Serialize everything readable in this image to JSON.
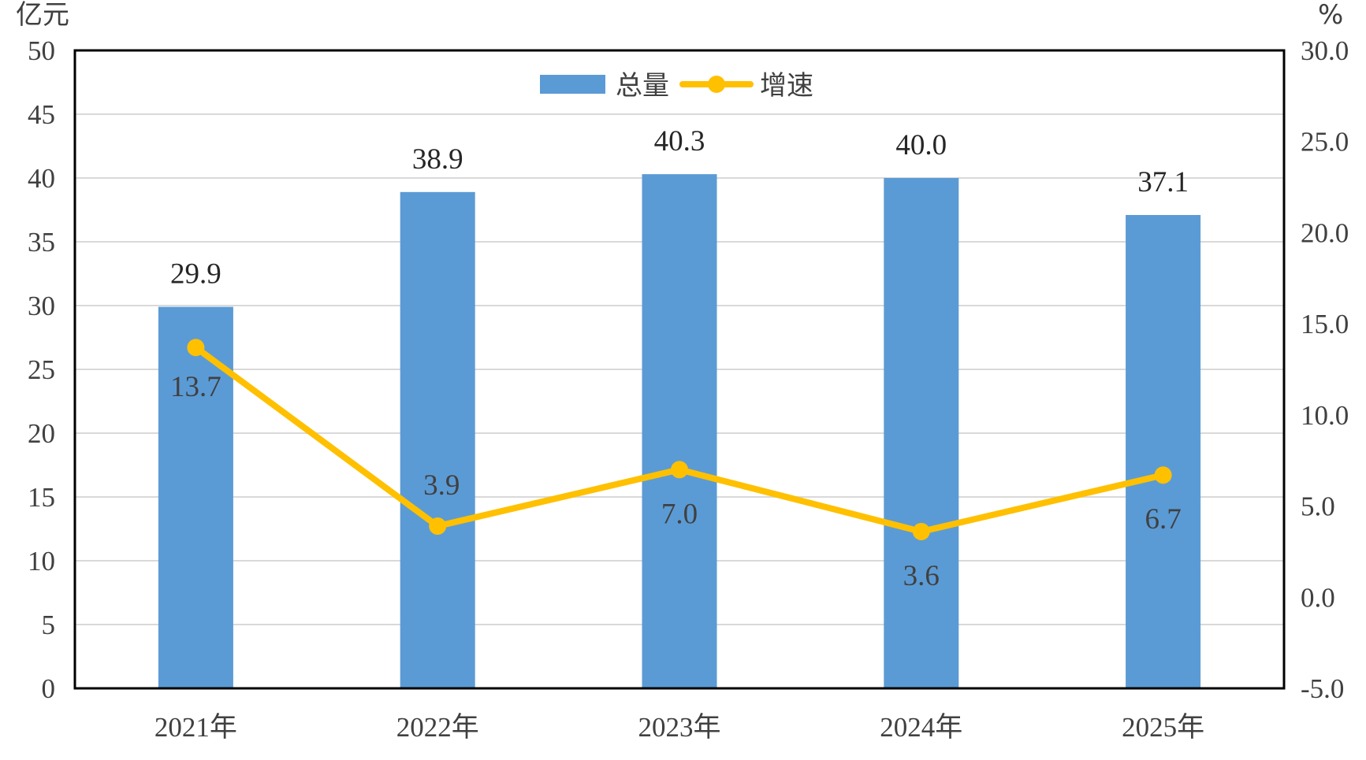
{
  "chart_data": {
    "type": "bar",
    "categories": [
      "2021年",
      "2022年",
      "2023年",
      "2024年",
      "2025年"
    ],
    "series": [
      {
        "name": "总量",
        "type": "bar",
        "axis": "left",
        "color": "#5B9BD5",
        "values": [
          29.9,
          38.9,
          40.3,
          40.0,
          37.1
        ],
        "labels": [
          "29.9",
          "38.9",
          "40.3",
          "40.0",
          "37.1"
        ]
      },
      {
        "name": "增速",
        "type": "line",
        "axis": "right",
        "color": "#FFC000",
        "values": [
          13.7,
          3.9,
          7.0,
          3.6,
          6.7
        ],
        "labels": [
          "13.7",
          "3.9",
          "7.0",
          "3.6",
          "6.7"
        ]
      }
    ],
    "y_left": {
      "unit": "亿元",
      "min": 0,
      "max": 50,
      "ticks": [
        "0",
        "5",
        "10",
        "15",
        "20",
        "25",
        "30",
        "35",
        "40",
        "45",
        "50"
      ]
    },
    "y_right": {
      "unit": "%",
      "min": -5,
      "max": 30,
      "ticks": [
        "-5.0",
        "0.0",
        "5.0",
        "10.0",
        "15.0",
        "20.0",
        "25.0",
        "30.0"
      ]
    },
    "grid": true,
    "legend": "top-center",
    "grid_color": "#D9D9D9",
    "frame_color": "#000000"
  }
}
